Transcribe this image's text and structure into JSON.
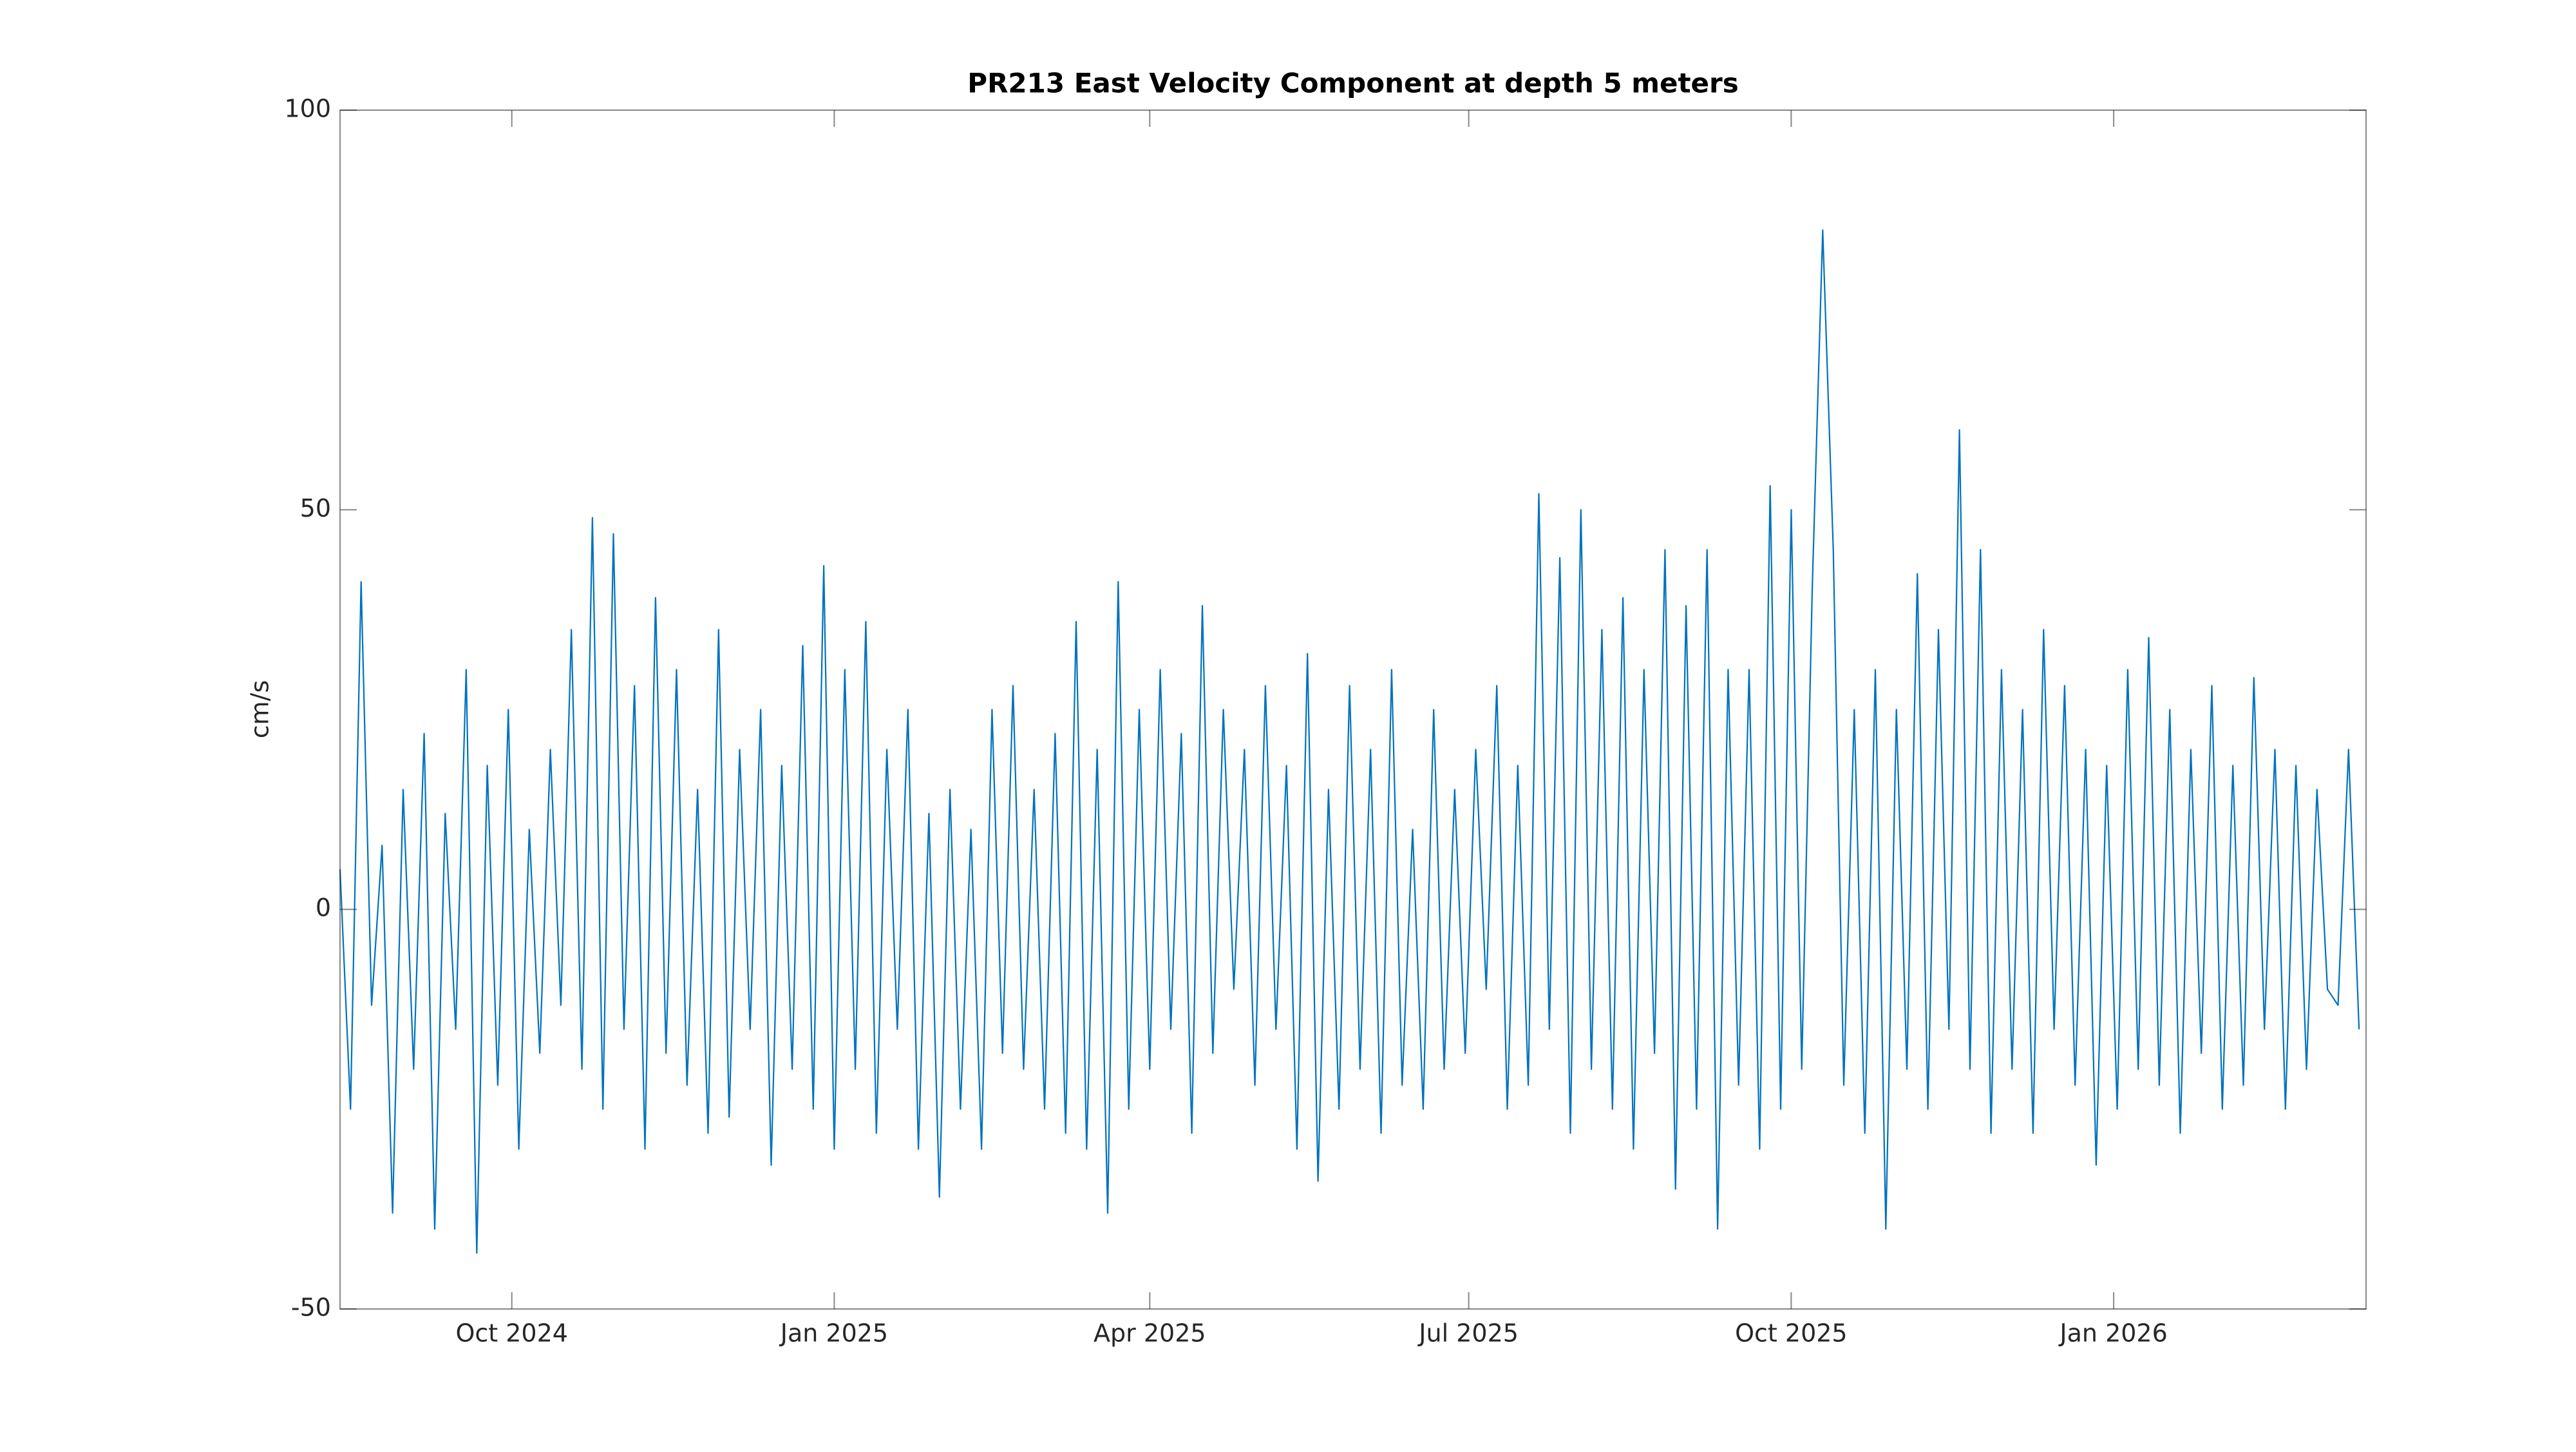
{
  "chart_data": {
    "type": "line",
    "title": "PR213 East Velocity Component at depth 5 meters",
    "ylabel": "cm/s",
    "xlim": [
      0,
      578
    ],
    "xticks": [
      {
        "value": 49,
        "label": "Oct 2024"
      },
      {
        "value": 141,
        "label": "Jan 2025"
      },
      {
        "value": 231,
        "label": "Apr 2025"
      },
      {
        "value": 322,
        "label": "Jul 2025"
      },
      {
        "value": 414,
        "label": "Oct 2025"
      },
      {
        "value": 506,
        "label": "Jan 2026"
      }
    ],
    "ylim": [
      -50,
      100
    ],
    "yticks": [
      -50,
      0,
      50,
      100
    ],
    "grid": false,
    "x": [
      0,
      3,
      6,
      9,
      12,
      15,
      18,
      21,
      24,
      27,
      30,
      33,
      36,
      39,
      42,
      45,
      48,
      51,
      54,
      57,
      60,
      63,
      66,
      69,
      72,
      75,
      78,
      81,
      84,
      87,
      90,
      93,
      96,
      99,
      102,
      105,
      108,
      111,
      114,
      117,
      120,
      123,
      126,
      129,
      132,
      135,
      138,
      141,
      144,
      147,
      150,
      153,
      156,
      159,
      162,
      165,
      168,
      171,
      174,
      177,
      180,
      183,
      186,
      189,
      192,
      195,
      198,
      201,
      204,
      207,
      210,
      213,
      216,
      219,
      222,
      225,
      228,
      231,
      234,
      237,
      240,
      243,
      246,
      249,
      252,
      255,
      258,
      261,
      264,
      267,
      270,
      273,
      276,
      279,
      282,
      285,
      288,
      291,
      294,
      297,
      300,
      303,
      306,
      309,
      312,
      315,
      318,
      321,
      324,
      327,
      330,
      333,
      336,
      339,
      342,
      345,
      348,
      351,
      354,
      357,
      360,
      363,
      366,
      369,
      372,
      375,
      378,
      381,
      384,
      387,
      390,
      393,
      396,
      399,
      402,
      405,
      408,
      411,
      414,
      417,
      420,
      423,
      426,
      429,
      432,
      435,
      438,
      441,
      444,
      447,
      450,
      453,
      456,
      459,
      462,
      465,
      468,
      471,
      474,
      477,
      480,
      483,
      486,
      489,
      492,
      495,
      498,
      501,
      504,
      507,
      510,
      513,
      516,
      519,
      522,
      525,
      528,
      531,
      534,
      537,
      540,
      543,
      546,
      549,
      552,
      555,
      558,
      561,
      564,
      567,
      570,
      573,
      576
    ],
    "series": [
      {
        "name": "East velocity",
        "color": "#0072BD",
        "values": [
          5,
          -25,
          41,
          -12,
          8,
          -38,
          15,
          -20,
          22,
          -40,
          12,
          -15,
          30,
          -43,
          18,
          -22,
          25,
          -30,
          10,
          -18,
          20,
          -12,
          35,
          -20,
          49,
          -25,
          47,
          -15,
          28,
          -30,
          39,
          -18,
          30,
          -22,
          15,
          -28,
          35,
          -26,
          20,
          -15,
          25,
          -32,
          18,
          -20,
          33,
          -25,
          43,
          -30,
          30,
          -20,
          36,
          -28,
          20,
          -15,
          25,
          -30,
          12,
          -36,
          15,
          -25,
          10,
          -30,
          25,
          -18,
          28,
          -20,
          15,
          -25,
          22,
          -28,
          36,
          -30,
          20,
          -38,
          41,
          -25,
          25,
          -20,
          30,
          -15,
          22,
          -28,
          38,
          -18,
          25,
          -10,
          20,
          -22,
          28,
          -15,
          18,
          -30,
          32,
          -34,
          15,
          -25,
          28,
          -20,
          20,
          -28,
          30,
          -22,
          10,
          -25,
          25,
          -20,
          15,
          -18,
          20,
          -10,
          28,
          -25,
          18,
          -22,
          52,
          -15,
          44,
          -28,
          50,
          -20,
          35,
          -25,
          39,
          -30,
          30,
          -18,
          45,
          -35,
          38,
          -25,
          45,
          -40,
          30,
          -22,
          30,
          -30,
          53,
          -25,
          50,
          -20,
          40,
          85,
          45,
          -22,
          25,
          -28,
          30,
          -40,
          25,
          -20,
          42,
          -25,
          35,
          -15,
          60,
          -20,
          45,
          -28,
          30,
          -20,
          25,
          -28,
          35,
          -15,
          28,
          -22,
          20,
          -32,
          18,
          -25,
          30,
          -20,
          34,
          -22,
          25,
          -28,
          20,
          -18,
          28,
          -25,
          18,
          -22,
          29,
          -15,
          20,
          -25,
          18,
          -20,
          15,
          -10,
          -12,
          20,
          -15
        ]
      }
    ]
  }
}
